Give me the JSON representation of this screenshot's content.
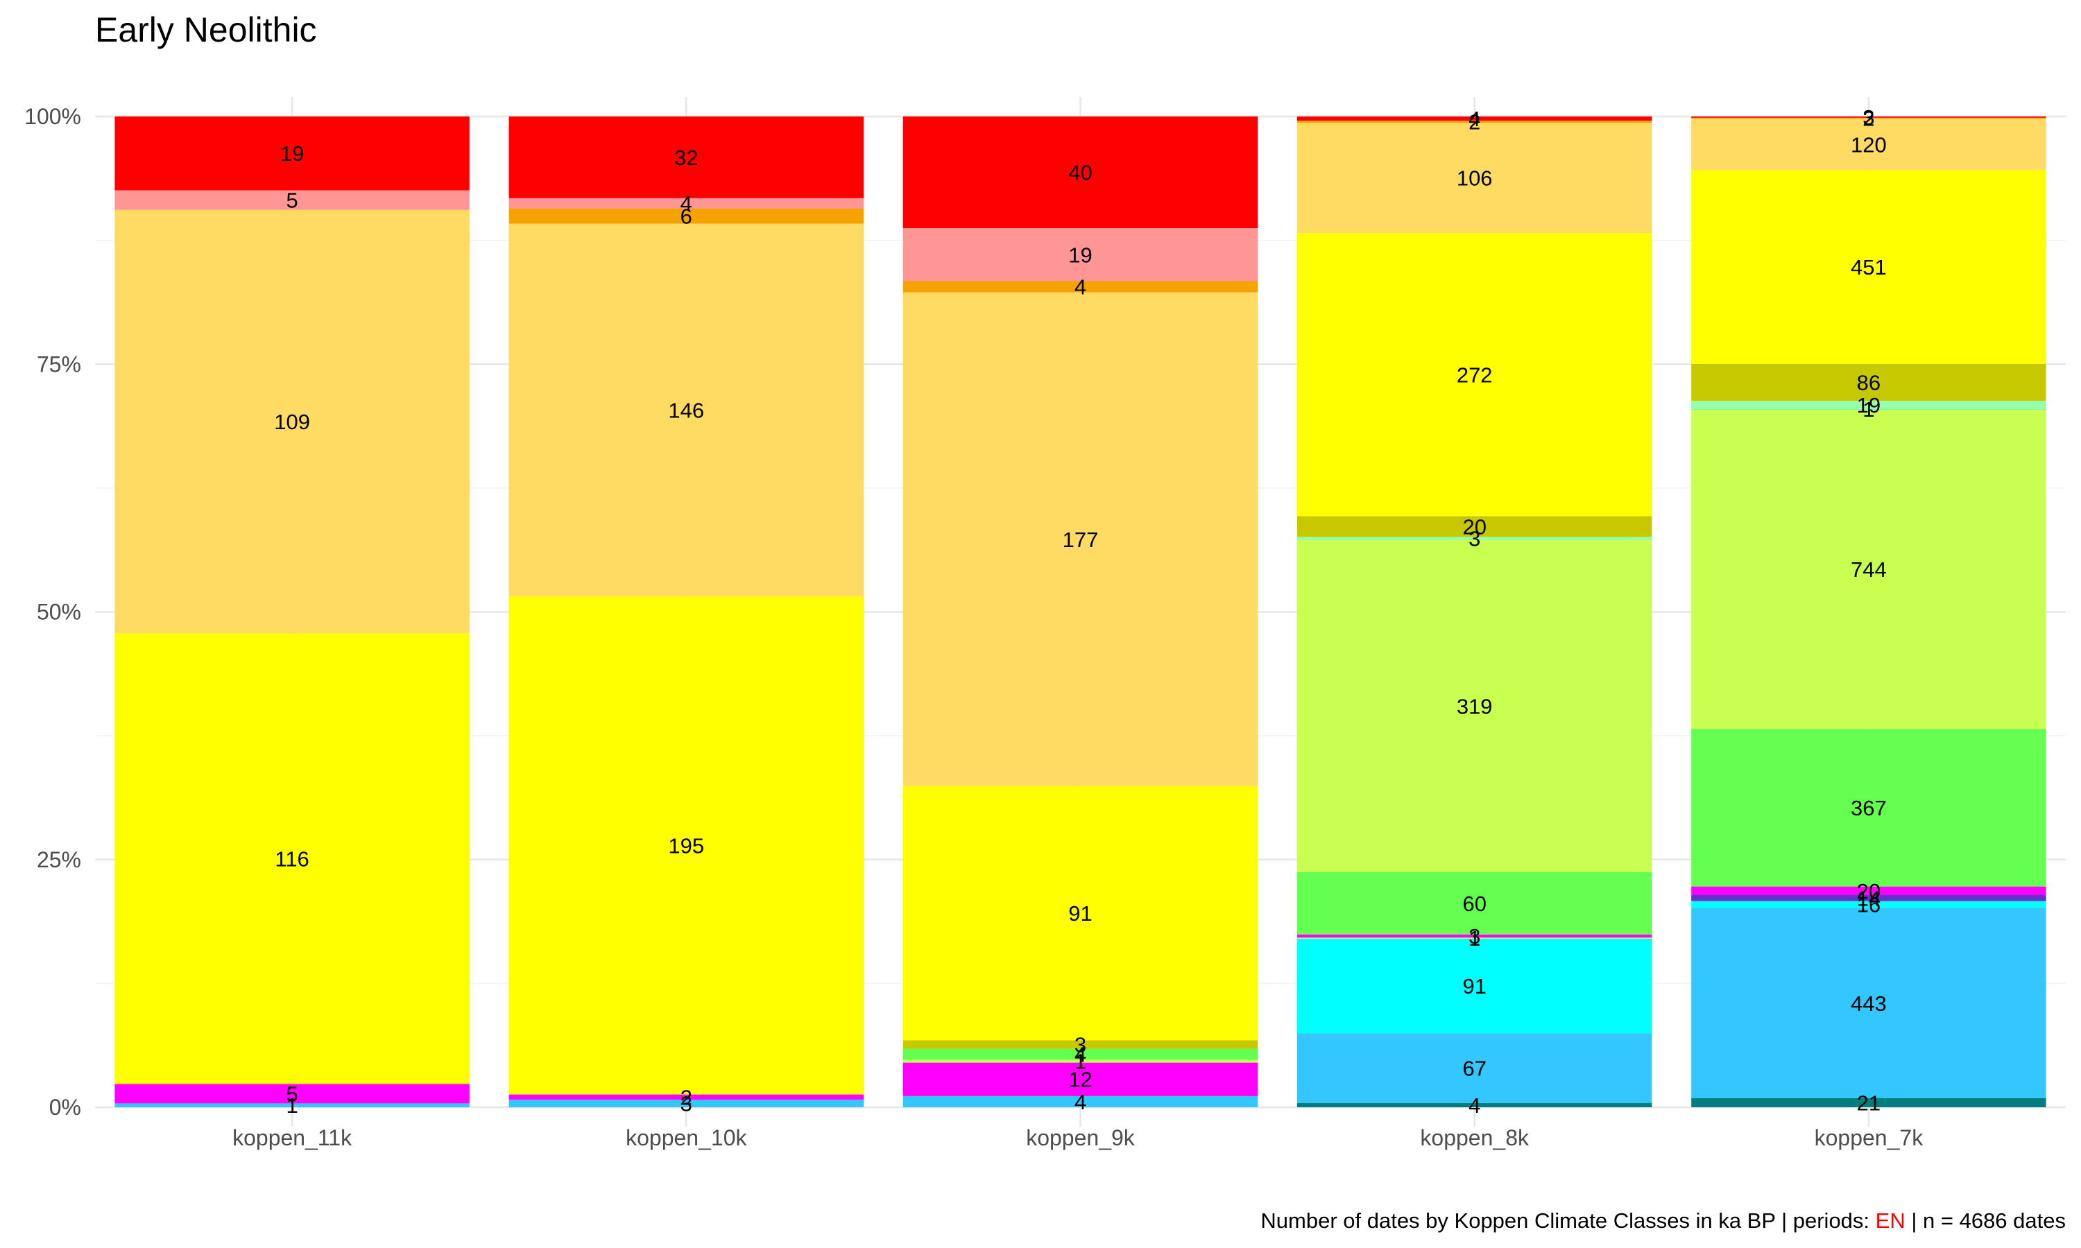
{
  "chart_data": {
    "type": "bar",
    "stacked": "percent",
    "title": "Early Neolithic",
    "categories": [
      "koppen_11k",
      "koppen_10k",
      "koppen_9k",
      "koppen_8k",
      "koppen_7k"
    ],
    "y_ticks": [
      "0%",
      "25%",
      "50%",
      "75%",
      "100%"
    ],
    "ylim": [
      0,
      1
    ],
    "grid": true,
    "legend": "none",
    "caption": {
      "prefix": "Number of dates by Koppen Climate Classes in ka BP | periods: ",
      "highlight": "EN",
      "highlight_color": "#ff0000",
      "suffix": " | n = 4686 dates"
    },
    "bars": [
      {
        "segments": [
          {
            "value": 1,
            "color": "#33c6ff"
          },
          {
            "value": 5,
            "color": "#ff00ff"
          },
          {
            "value": 116,
            "color": "#ffff00"
          },
          {
            "value": 109,
            "color": "#ffdb63"
          },
          {
            "value": 5,
            "color": "#ff9696"
          },
          {
            "value": 19,
            "color": "#ff0000"
          }
        ]
      },
      {
        "segments": [
          {
            "value": 3,
            "color": "#33c6ff"
          },
          {
            "value": 2,
            "color": "#ff00ff"
          },
          {
            "value": 195,
            "color": "#ffff00"
          },
          {
            "value": 146,
            "color": "#ffdb63"
          },
          {
            "value": 6,
            "color": "#f5a300"
          },
          {
            "value": 4,
            "color": "#ff9696"
          },
          {
            "value": 32,
            "color": "#ff0000"
          }
        ]
      },
      {
        "segments": [
          {
            "value": 4,
            "color": "#33c6ff"
          },
          {
            "value": 12,
            "color": "#ff00ff"
          },
          {
            "value": 1,
            "color": "#c8ff50"
          },
          {
            "value": 4,
            "color": "#64ff50"
          },
          {
            "value": 3,
            "color": "#c8c800"
          },
          {
            "value": 91,
            "color": "#ffff00"
          },
          {
            "value": 177,
            "color": "#ffdb63"
          },
          {
            "value": 4,
            "color": "#f5a300"
          },
          {
            "value": 19,
            "color": "#ff9696"
          },
          {
            "value": 40,
            "color": "#ff0000"
          }
        ]
      },
      {
        "segments": [
          {
            "value": 4,
            "color": "#007d7d"
          },
          {
            "value": 67,
            "color": "#33c6ff"
          },
          {
            "value": 91,
            "color": "#00ffff"
          },
          {
            "value": 1,
            "color": "#c8ff50"
          },
          {
            "value": 3,
            "color": "#ff00ff"
          },
          {
            "value": 60,
            "color": "#64ff50"
          },
          {
            "value": 319,
            "color": "#c8ff50"
          },
          {
            "value": 3,
            "color": "#96ffaa"
          },
          {
            "value": 20,
            "color": "#c8c800"
          },
          {
            "value": 272,
            "color": "#ffff00"
          },
          {
            "value": 106,
            "color": "#ffdb63"
          },
          {
            "value": 2,
            "color": "#f5a300"
          },
          {
            "value": 4,
            "color": "#ff0000"
          }
        ]
      },
      {
        "segments": [
          {
            "value": 21,
            "color": "#007d7d"
          },
          {
            "value": 443,
            "color": "#33c6ff"
          },
          {
            "value": 16,
            "color": "#00ffff"
          },
          {
            "value": 14,
            "color": "#6432c8"
          },
          {
            "value": 20,
            "color": "#ff00ff"
          },
          {
            "value": 367,
            "color": "#64ff50"
          },
          {
            "value": 744,
            "color": "#c8ff50"
          },
          {
            "value": 1,
            "color": "#00ffff"
          },
          {
            "value": 19,
            "color": "#96ffaa"
          },
          {
            "value": 86,
            "color": "#c8c800"
          },
          {
            "value": 451,
            "color": "#ffff00"
          },
          {
            "value": 120,
            "color": "#ffdb63"
          },
          {
            "value": 2,
            "color": "#f5a300"
          },
          {
            "value": 3,
            "color": "#ff0000"
          }
        ]
      }
    ]
  }
}
